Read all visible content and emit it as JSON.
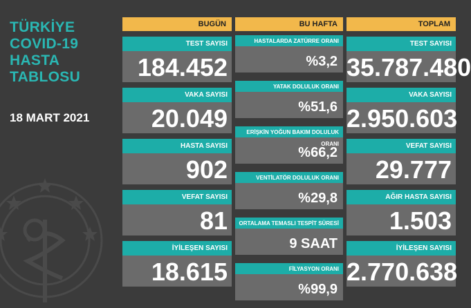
{
  "title_lines": [
    "TÜRKİYE",
    "COVID-19",
    "HASTA",
    "TABLOSU"
  ],
  "date": "18 MART 2021",
  "today": {
    "header": "BUGÜN",
    "cards": [
      {
        "label": "TEST SAYISI",
        "value": "184.452"
      },
      {
        "label": "VAKA SAYISI",
        "value": "20.049"
      },
      {
        "label": "HASTA SAYISI",
        "value": "902"
      },
      {
        "label": "VEFAT SAYISI",
        "value": "81"
      },
      {
        "label": "İYİLEŞEN SAYISI",
        "value": "18.615"
      }
    ]
  },
  "week": {
    "header": "BU HAFTA",
    "cards": [
      {
        "label": "HASTALARDA ZATÜRRE ORANI",
        "value": "%3,2"
      },
      {
        "label": "YATAK DOLULUK ORANI",
        "value": "%51,6"
      },
      {
        "label": "ERİŞKİN YOĞUN BAKIM DOLULUK ORANI",
        "value": "%66,2"
      },
      {
        "label": "VENTİLATÖR DOLULUK ORANI",
        "value": "%29,8"
      },
      {
        "label": "ORTALAMA TEMASLI TESPİT SÜRESİ",
        "value": "9 SAAT"
      },
      {
        "label": "FİLYASYON ORANI",
        "value": "%99,9"
      }
    ]
  },
  "total": {
    "header": "TOPLAM",
    "cards": [
      {
        "label": "TEST SAYISI",
        "value": "35.787.480"
      },
      {
        "label": "VAKA SAYISI",
        "value": "2.950.603"
      },
      {
        "label": "VEFAT SAYISI",
        "value": "29.777"
      },
      {
        "label": "AĞIR HASTA SAYISI",
        "value": "1.503"
      },
      {
        "label": "İYİLEŞEN SAYISI",
        "value": "2.770.638"
      }
    ]
  },
  "colors": {
    "background": "#3b3b3b",
    "teal": "#1dada8",
    "header": "#f2b84b",
    "value_bg": "#6b6b6b"
  },
  "icons": [
    "health-ministry-emblem-icon"
  ]
}
